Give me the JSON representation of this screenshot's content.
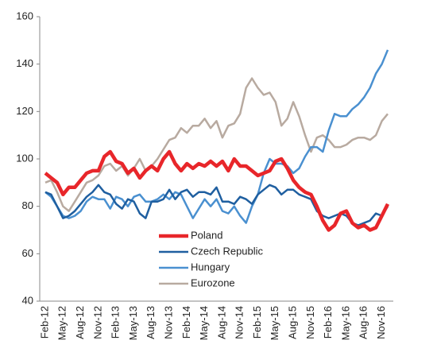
{
  "chart_data": {
    "type": "line",
    "categories": [
      "Feb-12",
      null,
      null,
      "May-12",
      null,
      null,
      "Aug-12",
      null,
      null,
      "Nov-12",
      null,
      null,
      "Feb-13",
      null,
      null,
      "May-13",
      null,
      null,
      "Aug-13",
      null,
      null,
      "Nov-13",
      null,
      null,
      "Feb-14",
      null,
      null,
      "May-14",
      null,
      null,
      "Aug-14",
      null,
      null,
      "Nov-14",
      null,
      null,
      "Feb-15",
      null,
      null,
      "May-15",
      null,
      null,
      "Aug-15",
      null,
      null,
      "Nov-15",
      null,
      null,
      "Feb-16",
      null,
      null,
      "May-16",
      null,
      null,
      "Aug-16",
      null,
      null,
      "Nov-16",
      null
    ],
    "series": [
      {
        "name": "Poland",
        "color": "#e8262a",
        "values": [
          94,
          92,
          90,
          85,
          88,
          88,
          91,
          94,
          95,
          95,
          101,
          103,
          99,
          98,
          94,
          96,
          92,
          95,
          97,
          95,
          100,
          103,
          98,
          95,
          98,
          96,
          98,
          97,
          99,
          97,
          99,
          95,
          100,
          97,
          97,
          95,
          93,
          94,
          95,
          99,
          100,
          96,
          91,
          88,
          86,
          85,
          80,
          74,
          70,
          72,
          77,
          78,
          73,
          71,
          72,
          70,
          71,
          76,
          81
        ]
      },
      {
        "name": "Czech Republic",
        "color": "#1f5fa0",
        "values": [
          86,
          85,
          80,
          75,
          76,
          78,
          81,
          84,
          86,
          89,
          86,
          85,
          81,
          79,
          83,
          82,
          77,
          75,
          82,
          82,
          83,
          87,
          83,
          86,
          87,
          84,
          86,
          86,
          85,
          88,
          82,
          82,
          81,
          84,
          83,
          81,
          85,
          87,
          89,
          88,
          85,
          87,
          87,
          85,
          84,
          83,
          78,
          76,
          75,
          76,
          77,
          76,
          73,
          72,
          73,
          74,
          77,
          76,
          80
        ]
      },
      {
        "name": "Hungary",
        "color": "#4a90d0",
        "values": [
          86,
          84,
          80,
          76,
          75,
          76,
          78,
          82,
          84,
          83,
          83,
          79,
          84,
          83,
          80,
          84,
          85,
          82,
          82,
          83,
          85,
          83,
          86,
          85,
          80,
          75,
          79,
          83,
          80,
          83,
          78,
          77,
          80,
          76,
          73,
          80,
          85,
          94,
          100,
          98,
          98,
          97,
          94,
          96,
          101,
          105,
          105,
          103,
          112,
          119,
          118,
          118,
          121,
          123,
          126,
          130,
          136,
          140,
          146
        ]
      },
      {
        "name": "Eurozone",
        "color": "#b8aaa0",
        "values": [
          90,
          91,
          86,
          80,
          78,
          82,
          86,
          90,
          91,
          93,
          97,
          98,
          95,
          97,
          93,
          96,
          100,
          95,
          97,
          100,
          104,
          108,
          109,
          113,
          111,
          114,
          114,
          117,
          113,
          116,
          109,
          114,
          115,
          119,
          130,
          134,
          130,
          127,
          128,
          124,
          114,
          117,
          124,
          118,
          110,
          103,
          109,
          110,
          108,
          105,
          105,
          106,
          108,
          109,
          109,
          108,
          110,
          116,
          119
        ]
      }
    ],
    "ylim": [
      40,
      160
    ],
    "yticks": [
      40,
      60,
      80,
      100,
      120,
      140,
      160
    ]
  }
}
